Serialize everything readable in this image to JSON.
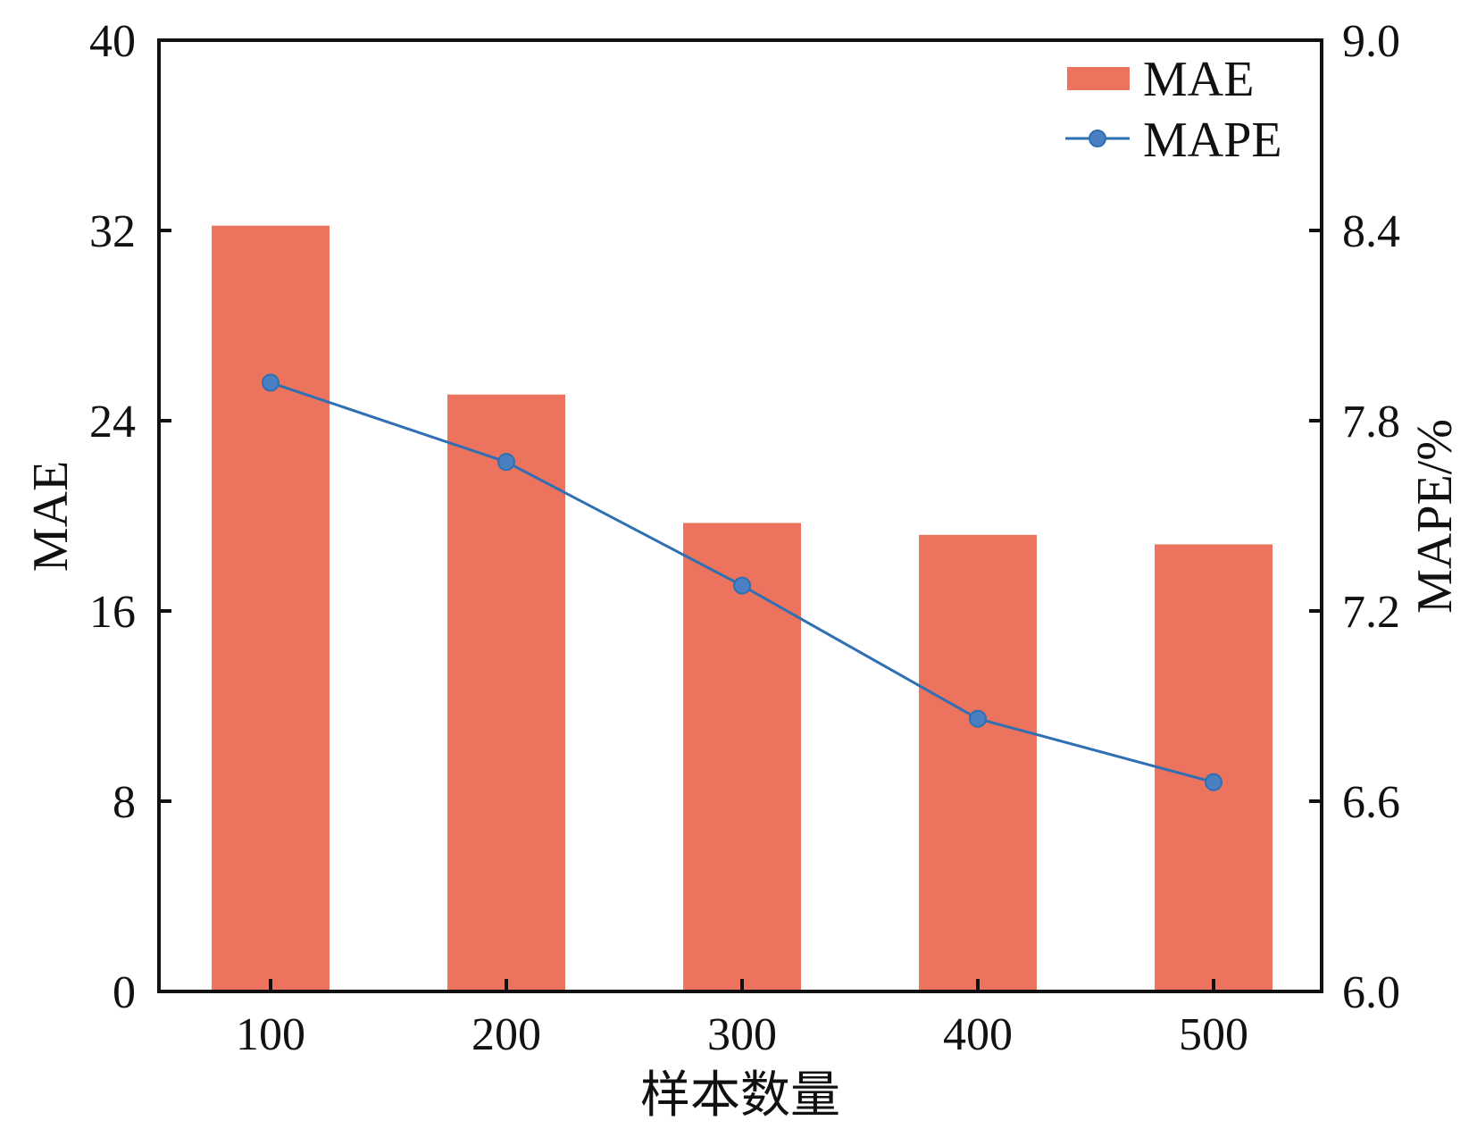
{
  "chart_data": {
    "type": "bar",
    "categories": [
      "100",
      "200",
      "300",
      "400",
      "500"
    ],
    "xlabel": "样本数量",
    "series": [
      {
        "name": "MAE",
        "kind": "bar",
        "axis": "left",
        "values": [
          32.2,
          25.1,
          19.7,
          19.2,
          18.8
        ],
        "color": "#ec735d"
      },
      {
        "name": "MAPE",
        "kind": "line",
        "axis": "right",
        "marker": "circle",
        "values": [
          7.92,
          7.67,
          7.28,
          6.86,
          6.66
        ],
        "color": "#2f6fb3",
        "marker_color": "#4a7fc1"
      }
    ],
    "y_left": {
      "label": "MAE",
      "ylim": [
        0,
        40
      ],
      "ticks": [
        "0",
        "8",
        "16",
        "24",
        "32",
        "40"
      ]
    },
    "y_right": {
      "label": "MAPE/%",
      "ylim": [
        6.0,
        9.0
      ],
      "ticks": [
        "6.0",
        "6.6",
        "7.2",
        "7.8",
        "8.4",
        "9.0"
      ]
    },
    "legend": {
      "placement": "top-right",
      "entries": [
        "MAE",
        "MAPE"
      ]
    },
    "grid": false
  }
}
